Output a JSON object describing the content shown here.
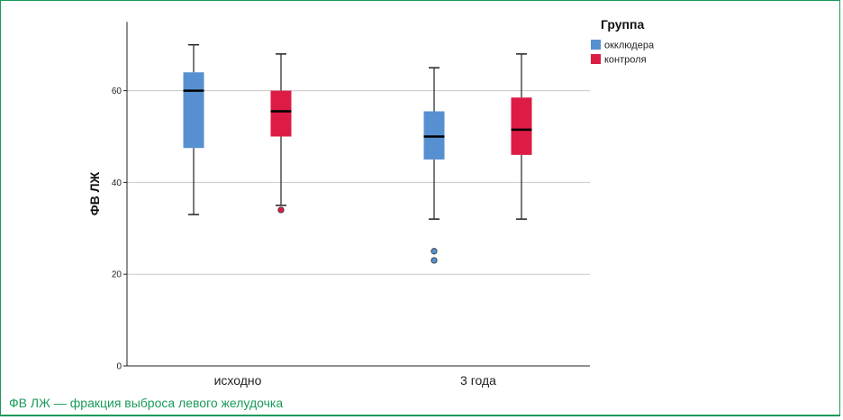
{
  "chart_data": {
    "type": "boxplot",
    "ylabel": "ФВ ЛЖ",
    "xlabel": "",
    "ylim": [
      0,
      75
    ],
    "yticks": [
      0,
      20,
      40,
      60
    ],
    "grid": true,
    "categories": [
      "исходно",
      "3 года"
    ],
    "legend": {
      "title": "Группа",
      "placement": "top-right"
    },
    "series": [
      {
        "name": "окклюдера",
        "color": "#5790d0",
        "boxes": [
          {
            "min": 33,
            "q1": 47.5,
            "median": 60,
            "q3": 64,
            "max": 70,
            "outliers": []
          },
          {
            "min": 32,
            "q1": 45,
            "median": 50,
            "q3": 55.5,
            "max": 65,
            "outliers": [
              25,
              23
            ]
          }
        ]
      },
      {
        "name": "контроля",
        "color": "#dc1c44",
        "boxes": [
          {
            "min": 35,
            "q1": 50,
            "median": 55.5,
            "q3": 60,
            "max": 68,
            "outliers": [
              34
            ]
          },
          {
            "min": 32,
            "q1": 46,
            "median": 51.5,
            "q3": 58.5,
            "max": 68,
            "outliers": []
          }
        ]
      }
    ]
  },
  "footnote": "ФВ ЛЖ — фракция выброса левого желудочка"
}
